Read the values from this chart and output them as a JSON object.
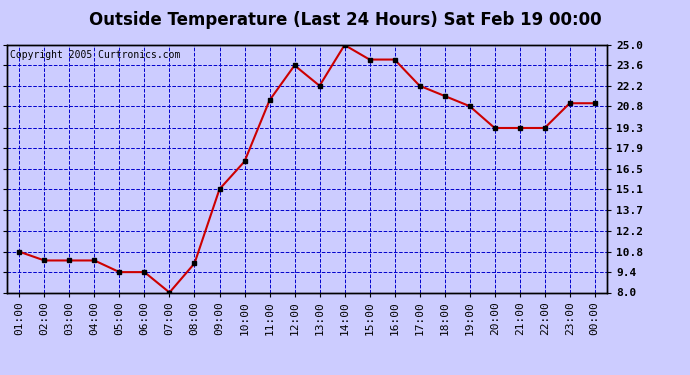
{
  "title": "Outside Temperature (Last 24 Hours) Sat Feb 19 00:00",
  "copyright": "Copyright 2005 Curtronics.com",
  "x_labels": [
    "01:00",
    "02:00",
    "03:00",
    "04:00",
    "05:00",
    "06:00",
    "07:00",
    "08:00",
    "09:00",
    "10:00",
    "11:00",
    "12:00",
    "13:00",
    "14:00",
    "15:00",
    "16:00",
    "17:00",
    "18:00",
    "19:00",
    "20:00",
    "21:00",
    "22:00",
    "23:00",
    "00:00"
  ],
  "y_values": [
    10.8,
    10.2,
    10.2,
    10.2,
    9.4,
    9.4,
    8.0,
    10.0,
    15.1,
    17.0,
    21.2,
    23.6,
    22.2,
    25.0,
    24.0,
    24.0,
    22.2,
    21.5,
    20.8,
    19.3,
    19.3,
    19.3,
    21.0,
    21.0
  ],
  "line_color": "#cc0000",
  "marker_color": "#000000",
  "bg_color": "#ccccff",
  "plot_bg_color": "#ccccff",
  "grid_color": "#0000cc",
  "border_color": "#000000",
  "title_color": "#000000",
  "copyright_color": "#000000",
  "y_ticks": [
    8.0,
    9.4,
    10.8,
    12.2,
    13.7,
    15.1,
    16.5,
    17.9,
    19.3,
    20.8,
    22.2,
    23.6,
    25.0
  ],
  "ylim": [
    8.0,
    25.0
  ],
  "title_fontsize": 12,
  "copyright_fontsize": 7,
  "tick_fontsize": 8
}
